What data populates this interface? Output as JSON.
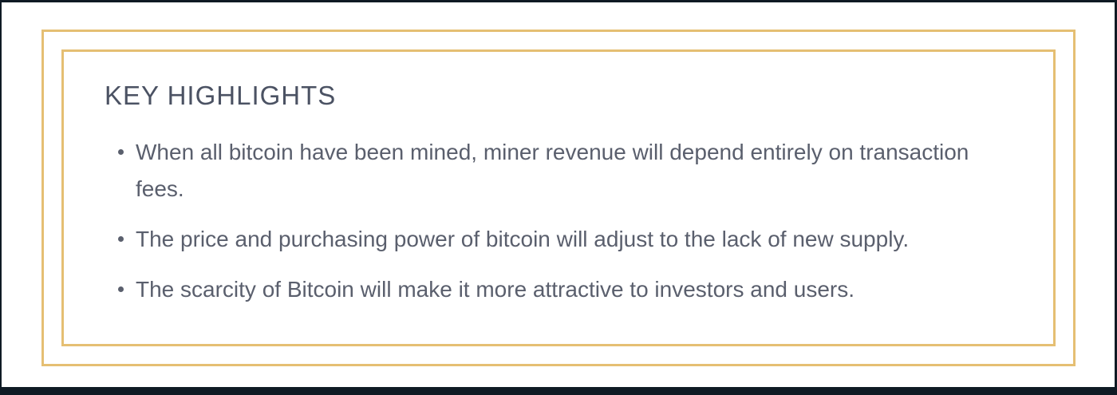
{
  "panel": {
    "heading": "KEY HIGHLIGHTS",
    "bullets": [
      "When all bitcoin have been mined, miner revenue will depend entirely on transaction fees.",
      "The price and purchasing power of bitcoin will adjust to the lack of new supply.",
      "The scarcity of Bitcoin will make it more attractive to investors and users."
    ]
  },
  "colors": {
    "border": "#e5bf73",
    "heading": "#4b5263",
    "text": "#5a5f6d",
    "page_edge": "#0f1a24"
  }
}
